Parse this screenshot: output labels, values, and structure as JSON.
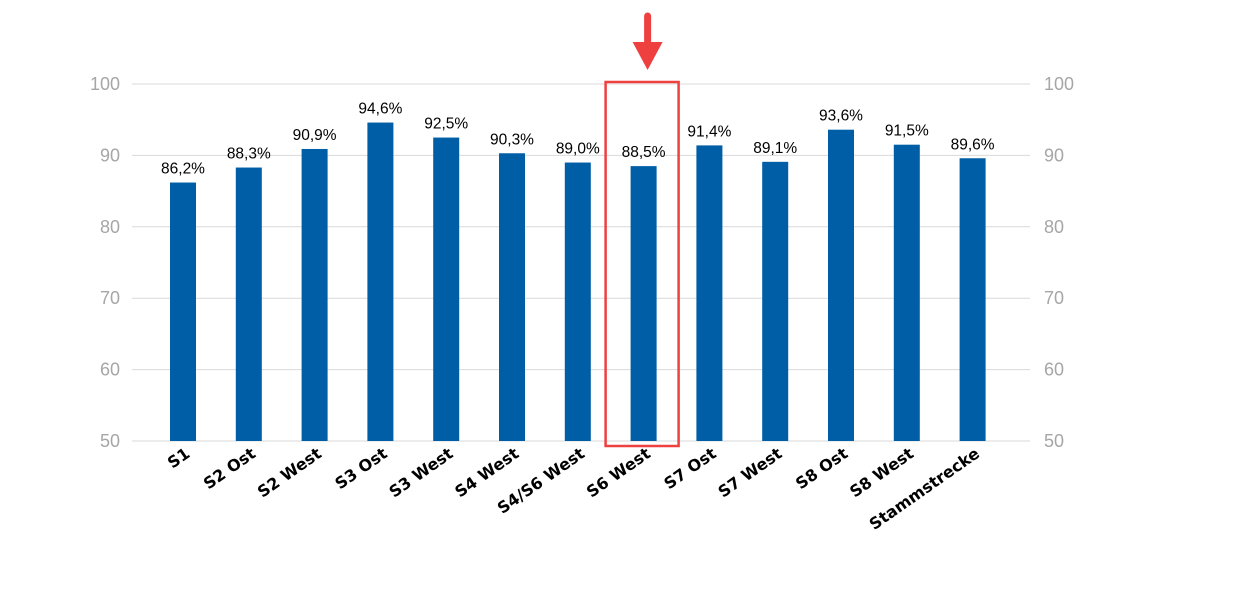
{
  "chart_data": {
    "type": "bar",
    "categories": [
      "S1",
      "S2 Ost",
      "S2 West",
      "S3 Ost",
      "S3 West",
      "S4 West",
      "S4/S6 West",
      "S6 West",
      "S7 Ost",
      "S7 West",
      "S8 Ost",
      "S8 West",
      "Stammstrecke"
    ],
    "values": [
      86.2,
      88.3,
      90.9,
      94.6,
      92.5,
      90.3,
      89.0,
      88.5,
      91.4,
      89.1,
      93.6,
      91.5,
      89.6
    ],
    "data_labels": [
      "86,2%",
      "88,3%",
      "90,9%",
      "94,6%",
      "92,5%",
      "90,3%",
      "89,0%",
      "88,5%",
      "91,4%",
      "89,1%",
      "93,6%",
      "91,5%",
      "89,6%"
    ],
    "title": "",
    "xlabel": "",
    "ylabel": "",
    "ylim": [
      50,
      100
    ],
    "yticks": [
      50,
      60,
      70,
      80,
      90,
      100
    ],
    "secondary_axis": true,
    "grid": true,
    "legend": "none",
    "highlighted_category": "S6 West"
  },
  "colors": {
    "bar": "#005ea6",
    "highlight": "#ef4040",
    "grid": "#d9d9d9",
    "tick": "#a6a6a6"
  }
}
